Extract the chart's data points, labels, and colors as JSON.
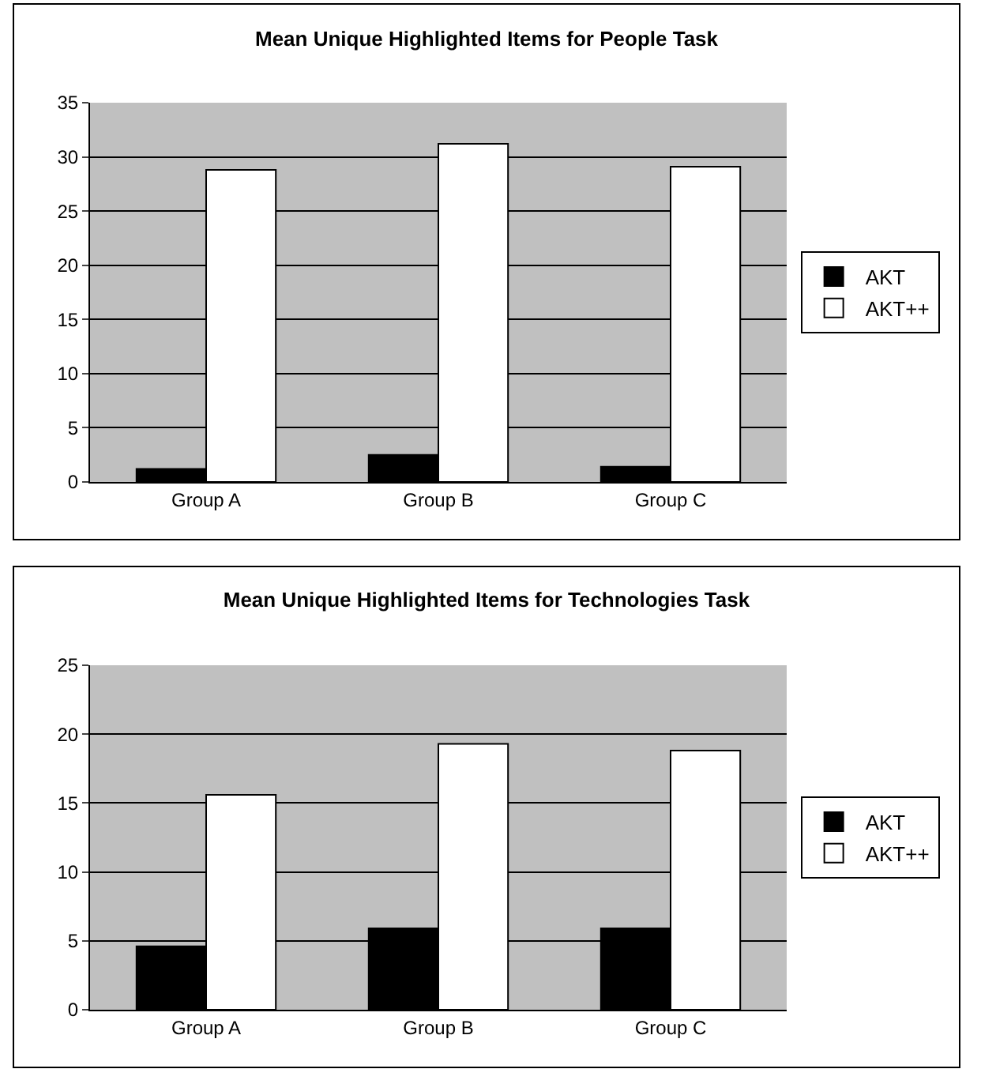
{
  "chart_data": [
    {
      "type": "bar",
      "title": "Mean Unique Highlighted Items for People Task",
      "categories": [
        "Group A",
        "Group B",
        "Group C"
      ],
      "series": [
        {
          "name": "AKT",
          "color": "#000000",
          "values": [
            1.2,
            2.5,
            1.4
          ]
        },
        {
          "name": "AKT++",
          "color": "#ffffff",
          "values": [
            28.8,
            31.2,
            29.1
          ]
        }
      ],
      "ylim": [
        0,
        35
      ],
      "yticks": [
        0,
        5,
        10,
        15,
        20,
        25,
        30,
        35
      ],
      "grid": "y",
      "legend": "right"
    },
    {
      "type": "bar",
      "title": "Mean Unique Highlighted Items for Technologies Task",
      "categories": [
        "Group A",
        "Group B",
        "Group C"
      ],
      "series": [
        {
          "name": "AKT",
          "color": "#000000",
          "values": [
            4.6,
            5.9,
            5.9
          ]
        },
        {
          "name": "AKT++",
          "color": "#ffffff",
          "values": [
            15.6,
            19.3,
            18.8
          ]
        }
      ],
      "ylim": [
        0,
        25
      ],
      "yticks": [
        0,
        5,
        10,
        15,
        20,
        25
      ],
      "grid": "y",
      "legend": "right"
    }
  ]
}
